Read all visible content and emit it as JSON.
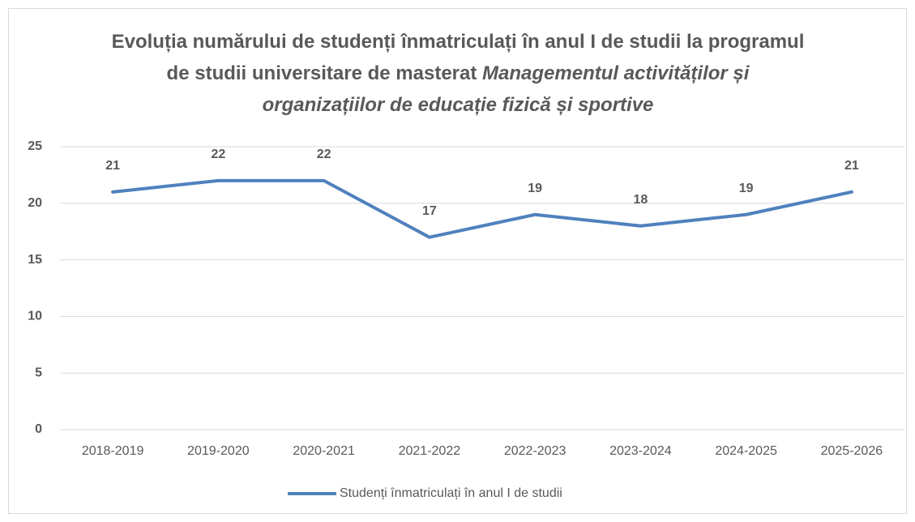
{
  "chart_data": {
    "type": "line",
    "title": [
      "Evoluția numărului de studenți înmatriculați în anul I de studii la programul de studii universitare de masterat",
      "Managementul activităților și organizațiilor de educație fizică și sportive"
    ],
    "categories": [
      "2018-2019",
      "2019-2020",
      "2020-2021",
      "2021-2022",
      "2022-2023",
      "2023-2024",
      "2024-2025",
      "2025-2026"
    ],
    "series": [
      {
        "name": "Studenți înmatriculați în anul I de studii",
        "color": "#4f81bd",
        "values": [
          21,
          22,
          22,
          17,
          19,
          18,
          19,
          21
        ]
      }
    ],
    "ylim": [
      0,
      25
    ],
    "yticks": [
      0,
      5,
      10,
      15,
      20,
      25
    ],
    "grid": true,
    "legend": "bottom"
  }
}
